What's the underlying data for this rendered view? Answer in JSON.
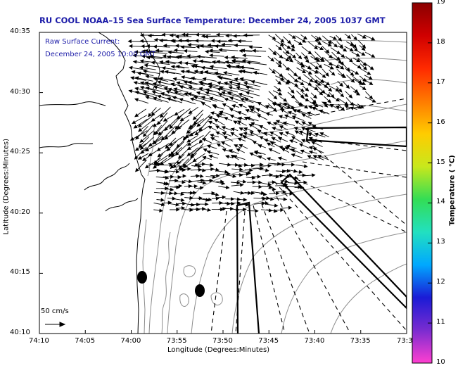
{
  "title": "RU COOL   NOAA–15  Sea Surface Temperature:  December 24, 2005 1037 GMT",
  "annotation": {
    "line1": "Raw Surface Current:",
    "line2": "December 24, 2005 10:00 GMT"
  },
  "axes": {
    "xlabel": "Longitude (Degrees:Minutes)",
    "ylabel": "Latitude (Degrees:Minutes)",
    "xticks": [
      "74:10",
      "74:05",
      "74:00",
      "73:55",
      "73:50",
      "73:45",
      "73:40",
      "73:35",
      "73:3"
    ],
    "yticks": [
      "40:35",
      "40:30",
      "40:25",
      "40:20",
      "40:15",
      "40:10"
    ]
  },
  "colorbar": {
    "label": "Temperature ( °C)",
    "ticks": [
      "19",
      "18",
      "17",
      "16",
      "15",
      "14",
      "13",
      "12",
      "11",
      "10"
    ],
    "colors": [
      "#ff3fd0",
      "#7a2cd0",
      "#1b1bd6",
      "#00a8ff",
      "#22e0c0",
      "#33dd55",
      "#c8e81c",
      "#ffcc00",
      "#ff7a00",
      "#ff2a00",
      "#d00000",
      "#8a0000"
    ]
  },
  "scale": {
    "label": "50 cm/s"
  },
  "colors": {
    "title": "#1c1ca8",
    "coast": "#000000",
    "bathymetry": "#8c8c8c",
    "vectors": "#000000"
  }
}
